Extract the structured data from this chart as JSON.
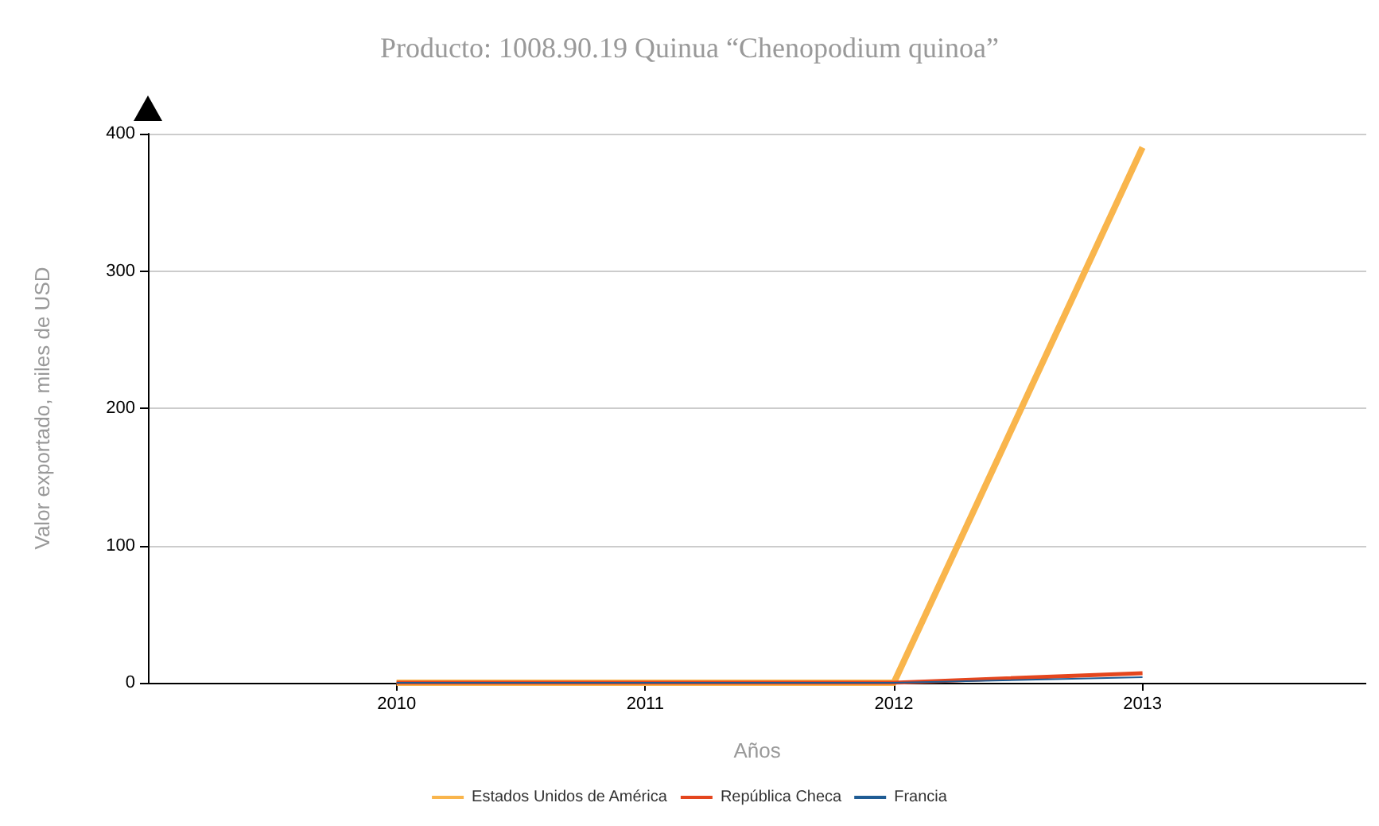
{
  "chart_data": {
    "type": "line",
    "title": "Producto: 1008.90.19 Quinua “Chenopodium quinoa”",
    "xlabel": "Años",
    "ylabel": "Valor exportado, miles de USD",
    "x": [
      2010,
      2011,
      2012,
      2013
    ],
    "series": [
      {
        "name": "Estados Unidos de América",
        "color": "#f9b54c",
        "values": [
          0,
          0,
          0,
          390
        ]
      },
      {
        "name": "República Checa",
        "color": "#e4461e",
        "values": [
          0,
          0,
          0,
          7
        ]
      },
      {
        "name": "Francia",
        "color": "#1f5c94",
        "values": [
          0,
          0,
          0,
          4
        ]
      }
    ],
    "xlim": [
      2009,
      2013.9
    ],
    "xticks": [
      2010,
      2011,
      2012,
      2013
    ],
    "ylim": [
      0,
      400
    ],
    "yticks": [
      0,
      100,
      200,
      300,
      400
    ],
    "grid": "y",
    "legend": "bottom",
    "marker": "none",
    "line_style": "solid"
  }
}
